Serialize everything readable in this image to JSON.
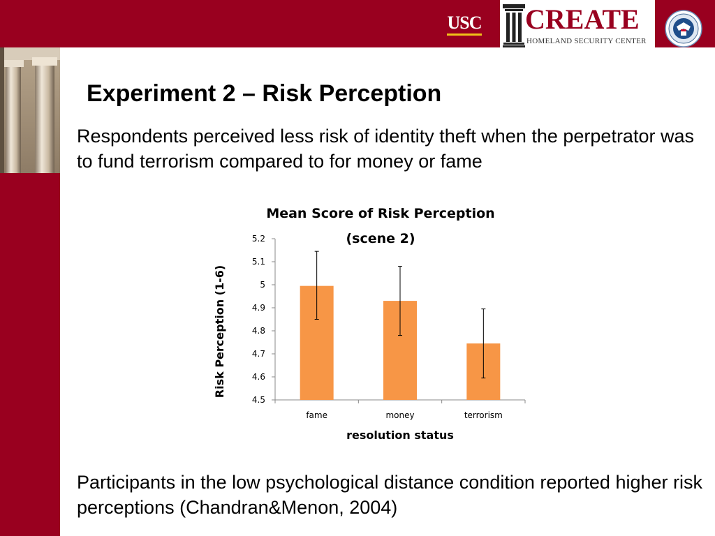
{
  "colors": {
    "brand": "#99001f",
    "bar": "#f79646",
    "gold": "#f0c419"
  },
  "header": {
    "usc_logo": "USC",
    "create_logo_word": "CREATE",
    "create_logo_subtitle": "HOMELAND SECURITY CENTER",
    "seal_icon": "dhs-seal-icon"
  },
  "slide": {
    "title": "Experiment 2 – Risk Perception",
    "paragraph_1": "Respondents perceived less risk of identity theft when the perpetrator was to fund terrorism compared to for money or fame",
    "paragraph_2": "Participants in the low psychological distance condition reported higher risk perceptions (Chandran&Menon, 2004)"
  },
  "chart_data": {
    "type": "bar",
    "title_line_1": "Mean Score of Risk Perception",
    "title_line_2": "(scene 2)",
    "xlabel": "resolution status",
    "ylabel": "Risk Perception (1-6)",
    "categories": [
      "fame",
      "money",
      "terrorism"
    ],
    "values": [
      4.995,
      4.93,
      4.745
    ],
    "error_low": [
      4.85,
      4.78,
      4.595
    ],
    "error_high": [
      5.145,
      5.08,
      4.895
    ],
    "ylim": [
      4.5,
      5.2
    ],
    "yticks": [
      4.5,
      4.6,
      4.7,
      4.8,
      4.9,
      5,
      5.1,
      5.2
    ],
    "ytick_labels": [
      "4.5",
      "4.6",
      "4.7",
      "4.8",
      "4.9",
      "5",
      "5.1",
      "5.2"
    ],
    "grid": false,
    "legend": "none"
  }
}
